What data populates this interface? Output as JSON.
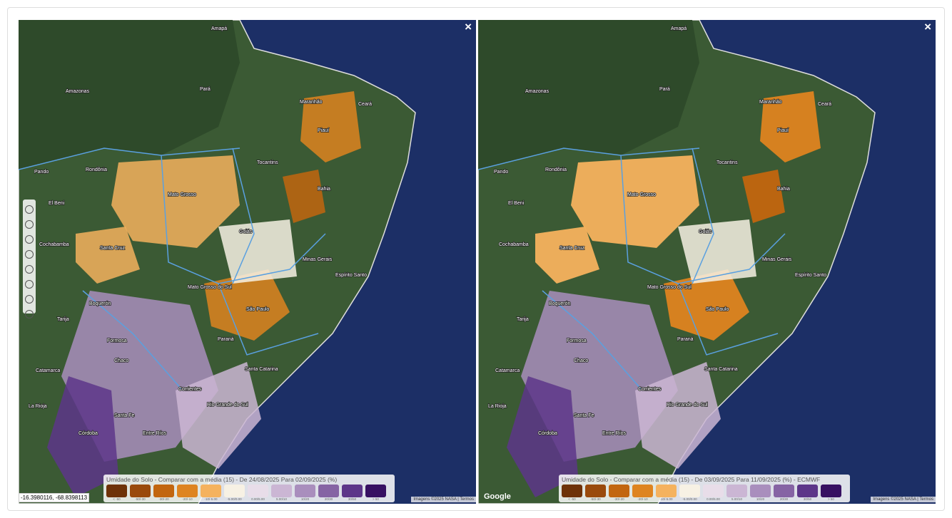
{
  "map_labels": [
    "Amapá",
    "Amazonas",
    "Pará",
    "Maranhão",
    "Piauí",
    "Ceará",
    "Rondônia",
    "Tocantins",
    "Mato Grosso",
    "Bahia",
    "El Beni",
    "Pando",
    "Santa Cruz",
    "Goiás",
    "Minas Gerais",
    "Mato Grosso do Sul",
    "São Paulo",
    "Paraná",
    "Santa Catarina",
    "Rio Grande do Sul",
    "Boquerón",
    "Formosa",
    "Chaco",
    "Corrientes",
    "Córdoba",
    "Santa Fe",
    "Entre Ríos",
    "Catamarca",
    "La Rioja",
    "Espírito Santo",
    "Tarija",
    "Cochabamba"
  ],
  "legend": {
    "classes": [
      {
        "label": "< -50",
        "color": "#6e3208"
      },
      {
        "label": "-50/-30",
        "color": "#9a4a0c"
      },
      {
        "label": "-30/-20",
        "color": "#c2660f"
      },
      {
        "label": "-20/-10",
        "color": "#de8420"
      },
      {
        "label": "-10/-5.00",
        "color": "#f5b25e"
      },
      {
        "label": "-5.00/0.00",
        "color": "#f7f1e4"
      },
      {
        "label": "0.00/5.00",
        "color": "#e8dde9"
      },
      {
        "label": "5.00/10",
        "color": "#cbb6d4"
      },
      {
        "label": "10/20",
        "color": "#a98ebd"
      },
      {
        "label": "20/30",
        "color": "#8664a4"
      },
      {
        "label": "30/50",
        "color": "#5d3689"
      },
      {
        "label": "> 50",
        "color": "#371062"
      }
    ]
  },
  "panels": [
    {
      "legend_title": "Umidade do Solo - Comparar com a média (15) - De 24/08/2025 Para 02/09/2025 (%)",
      "coordinates": "-16.3980116, -68.8398113",
      "attribution": "Imagens ©2025 NASA",
      "terms": "Termos",
      "close": "×"
    },
    {
      "legend_title": "Umidade do Solo - Comparar com a média (15) - De 03/09/2025 Para 11/09/2025 (%) - ECMWF",
      "google": "Google",
      "attribution": "Imagens ©2025 NASA",
      "terms": "Termos",
      "close": "×"
    }
  ]
}
